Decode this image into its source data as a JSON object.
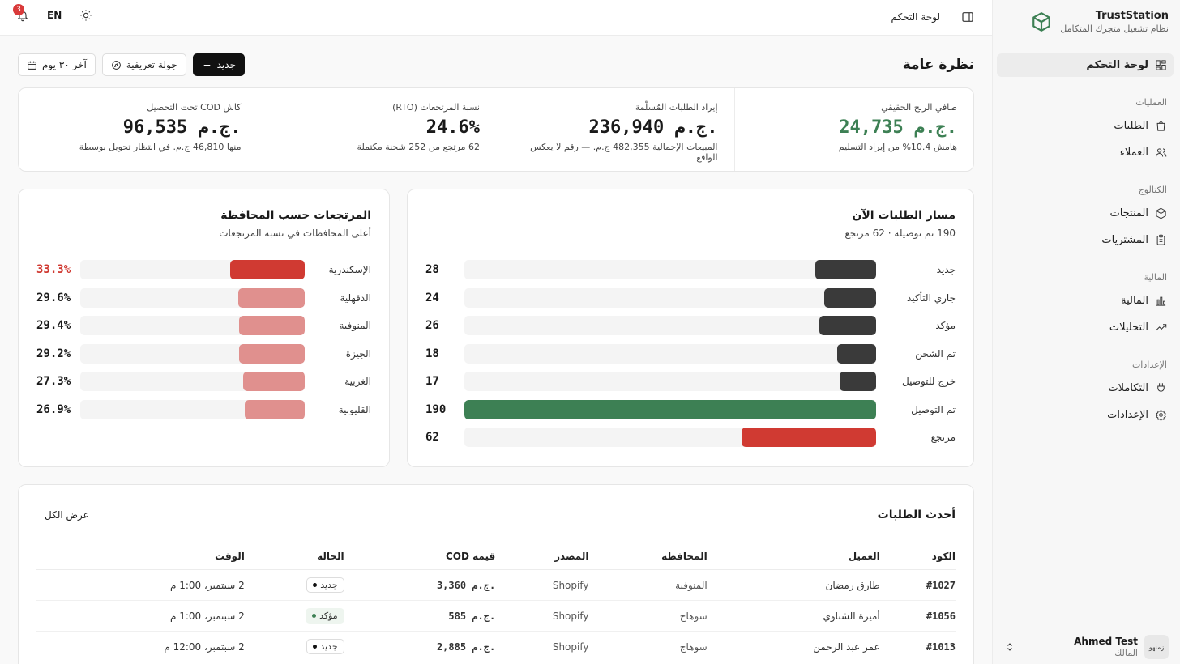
{
  "brand": {
    "name": "TrustStation",
    "tagline": "نظام تشغيل متجرك المتكامل"
  },
  "sidebar": {
    "dashboard": "لوحة التحكم",
    "sections": [
      {
        "title": "العمليات",
        "items": [
          "الطلبات",
          "العملاء"
        ]
      },
      {
        "title": "الكتالوج",
        "items": [
          "المنتجات",
          "المشتريات"
        ]
      },
      {
        "title": "المالية",
        "items": [
          "المالية",
          "التحليلات"
        ]
      },
      {
        "title": "الإعدادات",
        "items": [
          "التكاملات",
          "الإعدادات"
        ]
      }
    ]
  },
  "user": {
    "name": "Ahmed Test",
    "role": "المالك",
    "avatar_text": "زمنهو"
  },
  "topbar": {
    "breadcrumb": "لوحة التحكم",
    "lang": "EN",
    "notifications": "3"
  },
  "page": {
    "title": "نظرة عامة",
    "new_label": "جديد",
    "tour_label": "جولة تعريفية",
    "range_label": "آخر ٣٠ يوم"
  },
  "kpis": [
    {
      "label": "صافي الربح الحقيقي",
      "value": "24,735 ج.م.",
      "sub": "هامش 10.4% من إيراد التسليم",
      "color": "#3d8054"
    },
    {
      "label": "إيراد الطلبات المُسلّمة",
      "value": "236,940 ج.م.",
      "sub": "المبيعات الإجمالية 482,355 ج.م. — رقم لا يعكس الواقع"
    },
    {
      "label": "نسبة المرتجعات (RTO)",
      "value": "24.6%",
      "sub": "62 مرتجع من 252 شحنة مكتملة"
    },
    {
      "label": "كاش COD تحت التحصيل",
      "value": "96,535 ج.م.",
      "sub": "منها 46,810 ج.م. في انتظار تحويل بوسطة"
    }
  ],
  "pipeline": {
    "title": "مسار الطلبات الآن",
    "subtitle": "190 تم توصيله · 62 مرتجع",
    "max": 190,
    "rows": [
      {
        "label": "جديد",
        "value": 28,
        "color": "#3a3a3a"
      },
      {
        "label": "جاري التأكيد",
        "value": 24,
        "color": "#3a3a3a"
      },
      {
        "label": "مؤكد",
        "value": 26,
        "color": "#3a3a3a"
      },
      {
        "label": "تم الشحن",
        "value": 18,
        "color": "#3a3a3a"
      },
      {
        "label": "خرج للتوصيل",
        "value": 17,
        "color": "#3a3a3a"
      },
      {
        "label": "تم التوصيل",
        "value": 190,
        "color": "#3d8054"
      },
      {
        "label": "مرتجع",
        "value": 62,
        "color": "#d03a32"
      }
    ]
  },
  "returns": {
    "title": "المرتجعات حسب المحافظة",
    "subtitle": "أعلى المحافظات في نسبة المرتجعات",
    "max": 100,
    "rows": [
      {
        "label": "الإسكندرية",
        "value": 33.3,
        "display": "33.3%",
        "color": "#d03a32",
        "highlight": true
      },
      {
        "label": "الدقهلية",
        "value": 29.6,
        "display": "29.6%",
        "color": "#e0908e"
      },
      {
        "label": "المنوفية",
        "value": 29.4,
        "display": "29.4%",
        "color": "#e0908e"
      },
      {
        "label": "الجيزة",
        "value": 29.2,
        "display": "29.2%",
        "color": "#e0908e"
      },
      {
        "label": "الغربية",
        "value": 27.3,
        "display": "27.3%",
        "color": "#e0908e"
      },
      {
        "label": "القليوبية",
        "value": 26.9,
        "display": "26.9%",
        "color": "#e0908e"
      }
    ]
  },
  "orders": {
    "title": "أحدث الطلبات",
    "view_all": "عرض الكل",
    "columns": [
      "الكود",
      "العميل",
      "المحافظة",
      "المصدر",
      "قيمة COD",
      "الحالة",
      "الوقت"
    ],
    "rows": [
      {
        "code": "#1027",
        "customer": "طارق رمضان",
        "gov": "المنوفية",
        "source": "Shopify",
        "cod": "3,360 ج.م.",
        "status": "جديد",
        "status_ok": false,
        "time": "2 سبتمبر، 1:00 م"
      },
      {
        "code": "#1056",
        "customer": "أميرة الشناوي",
        "gov": "سوهاج",
        "source": "Shopify",
        "cod": "585 ج.م.",
        "status": "مؤكد",
        "status_ok": true,
        "time": "2 سبتمبر، 1:00 م"
      },
      {
        "code": "#1013",
        "customer": "عمر عبد الرحمن",
        "gov": "سوهاج",
        "source": "Shopify",
        "cod": "2,885 ج.م.",
        "status": "جديد",
        "status_ok": false,
        "time": "2 سبتمبر، 12:00 م"
      }
    ]
  }
}
